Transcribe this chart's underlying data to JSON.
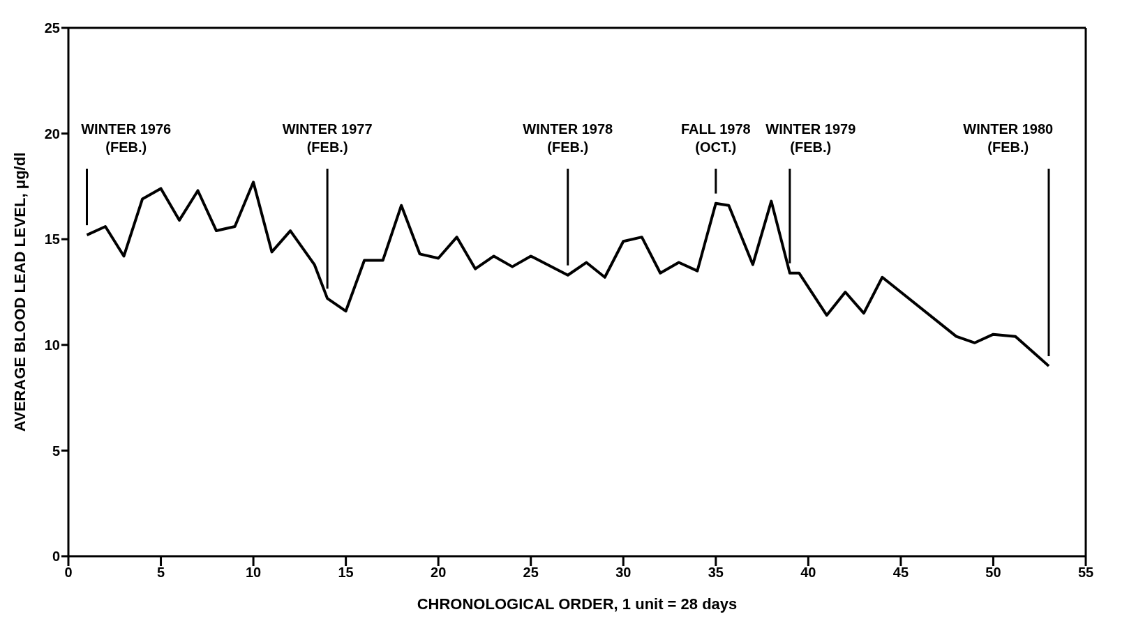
{
  "chart_data": {
    "type": "line",
    "xlabel": "CHRONOLOGICAL ORDER, 1 unit = 28 days",
    "ylabel": "AVERAGE BLOOD LEAD LEVEL, μg/dl",
    "x": [
      1,
      2,
      3,
      4,
      5,
      6,
      7,
      8,
      9,
      10,
      11,
      12,
      13.3,
      14,
      15,
      16,
      17,
      18,
      19,
      20,
      21,
      22,
      23,
      24,
      25,
      27,
      28,
      29,
      30,
      31,
      32,
      33,
      34,
      35,
      35.7,
      37,
      38,
      39,
      39.5,
      41,
      42,
      43,
      44,
      48,
      49,
      50,
      51.2,
      53
    ],
    "series": [
      {
        "color": "#000000",
        "values": [
          15.2,
          15.6,
          14.2,
          16.9,
          17.4,
          15.9,
          17.3,
          15.4,
          15.6,
          17.7,
          14.4,
          15.4,
          13.8,
          12.2,
          11.6,
          14.0,
          14.0,
          16.6,
          14.3,
          14.1,
          15.1,
          13.6,
          14.2,
          13.7,
          14.2,
          13.3,
          13.9,
          13.2,
          14.9,
          15.1,
          13.4,
          13.9,
          13.5,
          16.7,
          16.6,
          13.8,
          16.8,
          13.4,
          13.4,
          11.4,
          12.5,
          11.5,
          13.2,
          10.4,
          10.1,
          10.5,
          10.4,
          9.0
        ]
      }
    ],
    "xlim": [
      0,
      55
    ],
    "xticks": [
      0,
      5,
      10,
      15,
      20,
      25,
      30,
      35,
      40,
      45,
      50,
      55
    ],
    "ylim": [
      0,
      25
    ],
    "yticks": [
      0,
      5,
      10,
      15,
      20,
      25
    ],
    "marker": "none",
    "line_style": "solid",
    "ref_lines": [
      {
        "axis": "x",
        "value": 1,
        "label": "WINTER 1976\n(FEB.)"
      },
      {
        "axis": "x",
        "value": 14,
        "label": "WINTER 1977\n(FEB.)"
      },
      {
        "axis": "x",
        "value": 27,
        "label": "WINTER 1978\n(FEB.)"
      },
      {
        "axis": "x",
        "value": 35,
        "label": "FALL 1978\n(OCT.)"
      },
      {
        "axis": "x",
        "value": 39,
        "label": "WINTER 1979\n(FEB.)"
      },
      {
        "axis": "x",
        "value": 53,
        "label": "WINTER 1980\n(FEB.)"
      }
    ]
  }
}
